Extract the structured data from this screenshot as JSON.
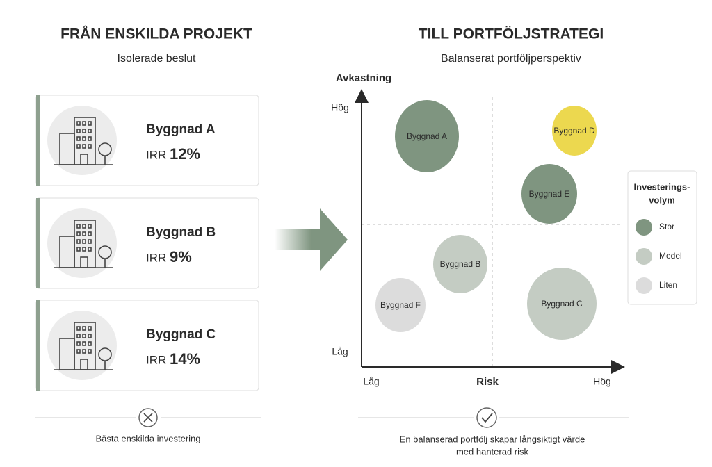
{
  "left": {
    "title": "FRÅN ENSKILDA PROJEKT",
    "subtitle": "Isolerade beslut",
    "cards": [
      {
        "name": "Byggnad A",
        "metric": "IRR",
        "value": "12%"
      },
      {
        "name": "Byggnad B",
        "metric": "IRR",
        "value": "9%"
      },
      {
        "name": "Byggnad C",
        "metric": "IRR",
        "value": "14%"
      }
    ],
    "caption": "Bästa enskilda investering"
  },
  "right": {
    "title": "TILL PORTFÖLJSTRATEGI",
    "subtitle": "Balanserat portföljperspektiv",
    "y_axis": {
      "label": "Avkastning",
      "high": "Hög",
      "low": "Låg"
    },
    "x_axis": {
      "label": "Risk",
      "low": "Låg",
      "high": "Hög"
    },
    "bubbles": [
      {
        "label": "Byggnad A",
        "color": "#7f9580"
      },
      {
        "label": "Byggnad D",
        "color": "#ecd84f"
      },
      {
        "label": "Byggnad E",
        "color": "#7f9580"
      },
      {
        "label": "Byggnad B",
        "color": "#c4ccc3"
      },
      {
        "label": "Byggnad F",
        "color": "#dcdcdc"
      },
      {
        "label": "Byggnad C",
        "color": "#c4ccc3"
      }
    ],
    "legend": {
      "title_lines": [
        "Investerings-",
        "volym"
      ],
      "items": [
        {
          "label": "Stor",
          "color": "#7f9580"
        },
        {
          "label": "Medel",
          "color": "#c4ccc3"
        },
        {
          "label": "Liten",
          "color": "#dcdcdc"
        }
      ]
    },
    "caption_lines": [
      "En balanserad portfölj skapar långsiktigt värde",
      "med hanterad risk"
    ]
  }
}
